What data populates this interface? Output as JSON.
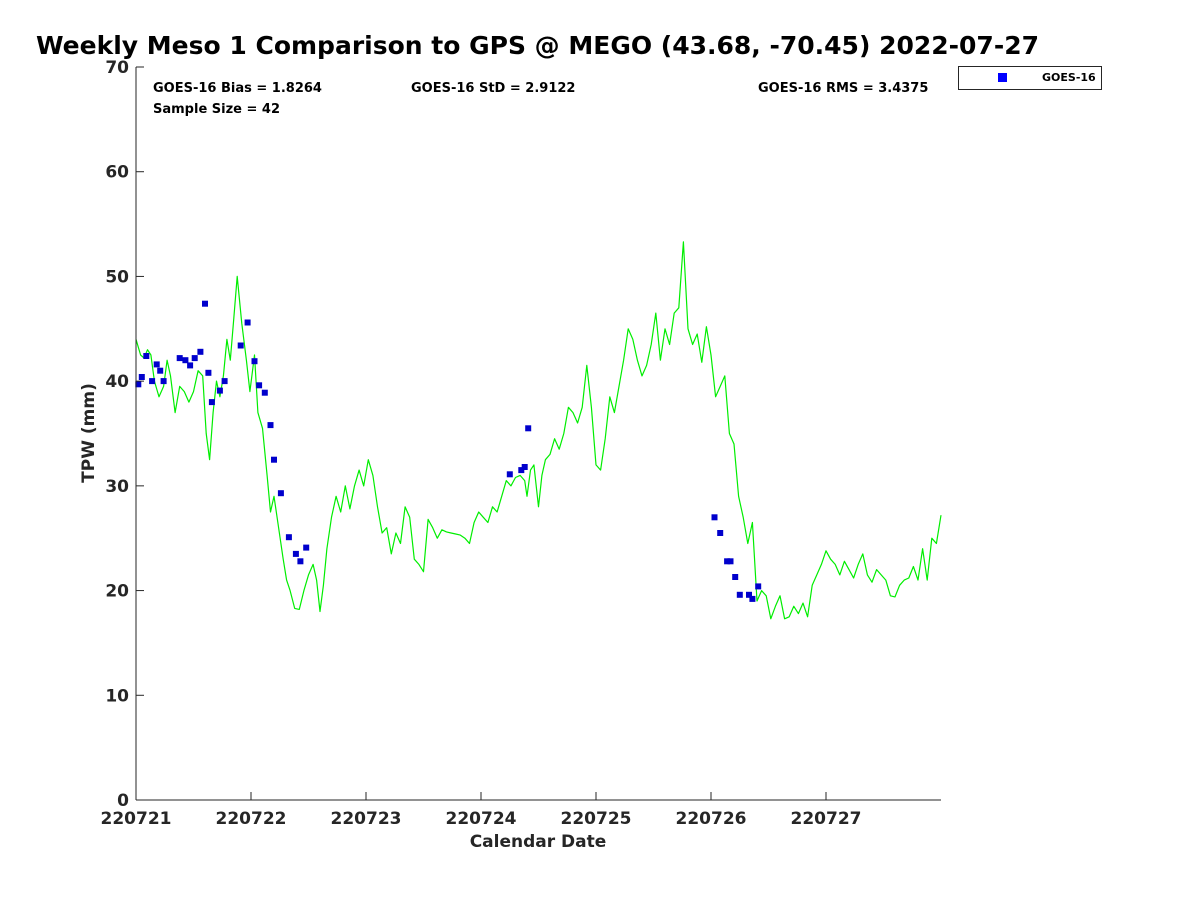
{
  "chart_data": {
    "type": "scatter",
    "title": "Weekly Meso 1 Comparison to GPS @ MEGO (43.68, -70.45) 2022-07-27",
    "xlabel": "Calendar Date",
    "ylabel": "TPW (mm)",
    "x_unit": "days (tick labels are YYMMDD)",
    "xlim": [
      "220721 00:00",
      "220728 00:00"
    ],
    "ylim": [
      0,
      70
    ],
    "yticks": [
      0,
      10,
      20,
      30,
      40,
      50,
      60,
      70
    ],
    "xticks": [
      {
        "value": 0,
        "label": "220721"
      },
      {
        "value": 1,
        "label": "220722"
      },
      {
        "value": 2,
        "label": "220723"
      },
      {
        "value": 3,
        "label": "220724"
      },
      {
        "value": 4,
        "label": "220725"
      },
      {
        "value": 5,
        "label": "220726"
      },
      {
        "value": 6,
        "label": "220727"
      }
    ],
    "grid": false,
    "legend_position": "top-right, outside plot",
    "stats": {
      "bias": "GOES-16 Bias = 1.8264",
      "std": "GOES-16 StD = 2.9122",
      "rms": "GOES-16 RMS = 3.4375",
      "sample": "Sample Size = 42"
    },
    "series": [
      {
        "name": "GOES-16",
        "kind": "scatter",
        "marker": "square",
        "color": "#0000cc",
        "points": [
          [
            0.02,
            39.7
          ],
          [
            0.05,
            40.4
          ],
          [
            0.09,
            42.4
          ],
          [
            0.14,
            40.0
          ],
          [
            0.18,
            41.6
          ],
          [
            0.21,
            41.0
          ],
          [
            0.24,
            40.0
          ],
          [
            0.38,
            42.2
          ],
          [
            0.43,
            42.0
          ],
          [
            0.47,
            41.5
          ],
          [
            0.51,
            42.2
          ],
          [
            0.56,
            42.8
          ],
          [
            0.6,
            47.4
          ],
          [
            0.63,
            40.8
          ],
          [
            0.66,
            38.0
          ],
          [
            0.73,
            39.1
          ],
          [
            0.77,
            40.0
          ],
          [
            0.91,
            43.4
          ],
          [
            0.97,
            45.6
          ],
          [
            1.03,
            41.9
          ],
          [
            1.07,
            39.6
          ],
          [
            1.12,
            38.9
          ],
          [
            1.17,
            35.8
          ],
          [
            1.2,
            32.5
          ],
          [
            1.26,
            29.3
          ],
          [
            1.33,
            25.1
          ],
          [
            1.39,
            23.5
          ],
          [
            1.43,
            22.8
          ],
          [
            1.48,
            24.1
          ],
          [
            3.25,
            31.1
          ],
          [
            3.35,
            31.5
          ],
          [
            3.38,
            31.8
          ],
          [
            3.41,
            35.5
          ],
          [
            5.03,
            27.0
          ],
          [
            5.08,
            25.5
          ],
          [
            5.14,
            22.8
          ],
          [
            5.17,
            22.8
          ],
          [
            5.21,
            21.3
          ],
          [
            5.25,
            19.6
          ],
          [
            5.33,
            19.6
          ],
          [
            5.36,
            19.2
          ],
          [
            5.41,
            20.4
          ]
        ]
      },
      {
        "name": "GPS",
        "kind": "line",
        "color": "#00ee00",
        "points": [
          [
            0.0,
            44.0
          ],
          [
            0.04,
            42.5
          ],
          [
            0.07,
            42.2
          ],
          [
            0.1,
            43.0
          ],
          [
            0.13,
            42.5
          ],
          [
            0.16,
            40.0
          ],
          [
            0.2,
            38.5
          ],
          [
            0.24,
            39.5
          ],
          [
            0.27,
            42.0
          ],
          [
            0.3,
            40.5
          ],
          [
            0.34,
            37.0
          ],
          [
            0.38,
            39.5
          ],
          [
            0.42,
            39.0
          ],
          [
            0.46,
            38.0
          ],
          [
            0.5,
            39.0
          ],
          [
            0.54,
            41.0
          ],
          [
            0.58,
            40.5
          ],
          [
            0.61,
            35.0
          ],
          [
            0.64,
            32.5
          ],
          [
            0.67,
            37.0
          ],
          [
            0.7,
            40.0
          ],
          [
            0.73,
            38.5
          ],
          [
            0.76,
            40.5
          ],
          [
            0.79,
            44.0
          ],
          [
            0.82,
            42.0
          ],
          [
            0.85,
            46.0
          ],
          [
            0.88,
            50.0
          ],
          [
            0.92,
            45.5
          ],
          [
            0.96,
            42.0
          ],
          [
            0.99,
            39.0
          ],
          [
            1.03,
            42.5
          ],
          [
            1.06,
            37.0
          ],
          [
            1.1,
            35.5
          ],
          [
            1.14,
            31.0
          ],
          [
            1.17,
            27.5
          ],
          [
            1.2,
            29.0
          ],
          [
            1.24,
            26.0
          ],
          [
            1.28,
            23.0
          ],
          [
            1.31,
            21.0
          ],
          [
            1.34,
            20.0
          ],
          [
            1.38,
            18.3
          ],
          [
            1.42,
            18.2
          ],
          [
            1.46,
            20.0
          ],
          [
            1.5,
            21.5
          ],
          [
            1.54,
            22.5
          ],
          [
            1.57,
            21.0
          ],
          [
            1.6,
            18.0
          ],
          [
            1.63,
            20.5
          ],
          [
            1.66,
            24.0
          ],
          [
            1.7,
            27.0
          ],
          [
            1.74,
            29.0
          ],
          [
            1.78,
            27.5
          ],
          [
            1.82,
            30.0
          ],
          [
            1.86,
            27.8
          ],
          [
            1.9,
            30.0
          ],
          [
            1.94,
            31.5
          ],
          [
            1.98,
            30.0
          ],
          [
            2.02,
            32.5
          ],
          [
            2.06,
            31.0
          ],
          [
            2.1,
            28.0
          ],
          [
            2.14,
            25.5
          ],
          [
            2.18,
            26.0
          ],
          [
            2.22,
            23.5
          ],
          [
            2.26,
            25.5
          ],
          [
            2.3,
            24.5
          ],
          [
            2.34,
            28.0
          ],
          [
            2.38,
            27.0
          ],
          [
            2.42,
            23.0
          ],
          [
            2.46,
            22.5
          ],
          [
            2.5,
            21.8
          ],
          [
            2.54,
            26.8
          ],
          [
            2.58,
            26.0
          ],
          [
            2.62,
            25.0
          ],
          [
            2.66,
            25.8
          ],
          [
            2.7,
            25.6
          ],
          [
            2.74,
            25.5
          ],
          [
            2.78,
            25.4
          ],
          [
            2.82,
            25.3
          ],
          [
            2.86,
            25.0
          ],
          [
            2.9,
            24.5
          ],
          [
            2.94,
            26.5
          ],
          [
            2.98,
            27.5
          ],
          [
            3.02,
            27.0
          ],
          [
            3.06,
            26.5
          ],
          [
            3.1,
            28.0
          ],
          [
            3.14,
            27.5
          ],
          [
            3.18,
            29.0
          ],
          [
            3.22,
            30.5
          ],
          [
            3.26,
            30.0
          ],
          [
            3.3,
            30.8
          ],
          [
            3.34,
            31.0
          ],
          [
            3.38,
            30.5
          ],
          [
            3.4,
            29.0
          ],
          [
            3.43,
            31.5
          ],
          [
            3.46,
            32.0
          ],
          [
            3.5,
            28.0
          ],
          [
            3.53,
            31.0
          ],
          [
            3.56,
            32.5
          ],
          [
            3.6,
            33.0
          ],
          [
            3.64,
            34.5
          ],
          [
            3.68,
            33.5
          ],
          [
            3.72,
            35.0
          ],
          [
            3.76,
            37.5
          ],
          [
            3.8,
            37.0
          ],
          [
            3.84,
            36.0
          ],
          [
            3.88,
            37.5
          ],
          [
            3.92,
            41.5
          ],
          [
            3.96,
            37.5
          ],
          [
            4.0,
            32.0
          ],
          [
            4.04,
            31.5
          ],
          [
            4.08,
            34.5
          ],
          [
            4.12,
            38.5
          ],
          [
            4.16,
            37.0
          ],
          [
            4.2,
            39.5
          ],
          [
            4.24,
            42.0
          ],
          [
            4.28,
            45.0
          ],
          [
            4.32,
            44.0
          ],
          [
            4.36,
            42.0
          ],
          [
            4.4,
            40.5
          ],
          [
            4.44,
            41.5
          ],
          [
            4.48,
            43.5
          ],
          [
            4.52,
            46.5
          ],
          [
            4.56,
            42.0
          ],
          [
            4.6,
            45.0
          ],
          [
            4.64,
            43.5
          ],
          [
            4.68,
            46.5
          ],
          [
            4.72,
            47.0
          ],
          [
            4.76,
            53.3
          ],
          [
            4.8,
            45.0
          ],
          [
            4.84,
            43.5
          ],
          [
            4.88,
            44.5
          ],
          [
            4.92,
            41.8
          ],
          [
            4.96,
            45.2
          ],
          [
            5.0,
            42.5
          ],
          [
            5.04,
            38.5
          ],
          [
            5.08,
            39.5
          ],
          [
            5.12,
            40.5
          ],
          [
            5.16,
            35.0
          ],
          [
            5.2,
            34.0
          ],
          [
            5.24,
            29.0
          ],
          [
            5.28,
            27.0
          ],
          [
            5.32,
            24.5
          ],
          [
            5.36,
            26.5
          ],
          [
            5.4,
            19.0
          ],
          [
            5.44,
            20.0
          ],
          [
            5.48,
            19.5
          ],
          [
            5.52,
            17.3
          ],
          [
            5.56,
            18.5
          ],
          [
            5.6,
            19.5
          ],
          [
            5.64,
            17.3
          ],
          [
            5.68,
            17.5
          ],
          [
            5.72,
            18.5
          ],
          [
            5.76,
            17.8
          ],
          [
            5.8,
            18.8
          ],
          [
            5.84,
            17.5
          ],
          [
            5.88,
            20.5
          ],
          [
            5.92,
            21.5
          ],
          [
            5.96,
            22.5
          ],
          [
            6.0,
            23.8
          ],
          [
            6.04,
            23.0
          ],
          [
            6.08,
            22.5
          ],
          [
            6.12,
            21.5
          ],
          [
            6.16,
            22.8
          ],
          [
            6.2,
            22.0
          ],
          [
            6.24,
            21.2
          ],
          [
            6.28,
            22.5
          ],
          [
            6.32,
            23.5
          ],
          [
            6.36,
            21.5
          ],
          [
            6.4,
            20.8
          ],
          [
            6.44,
            22.0
          ],
          [
            6.48,
            21.5
          ],
          [
            6.52,
            21.0
          ],
          [
            6.56,
            19.5
          ],
          [
            6.6,
            19.4
          ],
          [
            6.64,
            20.5
          ],
          [
            6.68,
            21.0
          ],
          [
            6.72,
            21.2
          ],
          [
            6.76,
            22.3
          ],
          [
            6.8,
            21.0
          ],
          [
            6.84,
            24.0
          ],
          [
            6.88,
            21.0
          ],
          [
            6.92,
            25.0
          ],
          [
            6.96,
            24.5
          ],
          [
            7.0,
            27.2
          ]
        ]
      }
    ],
    "legend": [
      {
        "label": "GOES-16",
        "marker": "square",
        "color": "#0000ff"
      }
    ],
    "colors": {
      "goes_marker": "#0000cc",
      "gps_line": "#00ee00",
      "axis": "#262626"
    }
  }
}
